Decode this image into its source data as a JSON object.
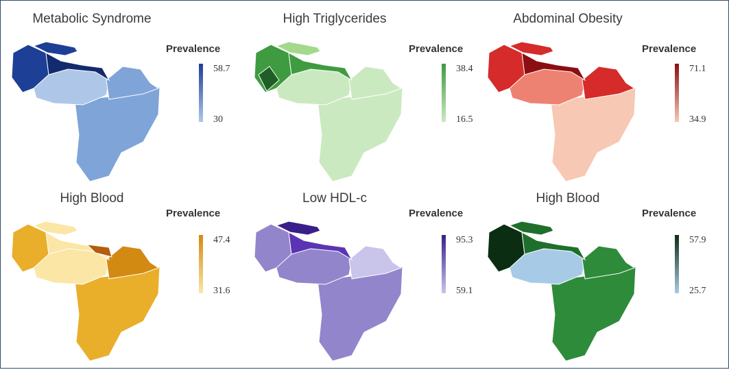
{
  "figure": {
    "panels": [
      {
        "id": "metabolic",
        "title": "Metabolic Syndrome",
        "legend_title": "Prevalence",
        "max": "58.7",
        "min": "30",
        "colors": {
          "light": "#aec7e8",
          "mid": "#7fa4d8",
          "dark": "#1d3f96",
          "darker": "#122a6e"
        }
      },
      {
        "id": "triglycerides",
        "title": "High Triglycerides",
        "legend_title": "Prevalence",
        "max": "38.4",
        "min": "16.5",
        "colors": {
          "light": "#cbe9c0",
          "mid": "#a3d98b",
          "dark": "#3f9b3f",
          "darker": "#1f5f27"
        }
      },
      {
        "id": "obesity",
        "title": "Abdominal Obesity",
        "legend_title": "Prevalence",
        "max": "71.1",
        "min": "34.9",
        "colors": {
          "light": "#f7c8b3",
          "mid": "#ee8272",
          "dark": "#d62b2b",
          "darker": "#8b0f12"
        }
      },
      {
        "id": "high_blood_1",
        "title": "High Blood",
        "legend_title": "Prevalence",
        "max": "47.4",
        "min": "31.6",
        "colors": {
          "light": "#fbe6a6",
          "mid": "#e9ae2a",
          "dark": "#d38a12",
          "darker": "#b35e0c"
        }
      },
      {
        "id": "low_hdl",
        "title": "Low HDL-c",
        "legend_title": "Prevalence",
        "max": "95.3",
        "min": "59.1",
        "colors": {
          "light": "#c9c4ea",
          "mid": "#9385cc",
          "dark": "#5a34b3",
          "darker": "#3a1f8a"
        }
      },
      {
        "id": "high_blood_2",
        "title": "High Blood",
        "legend_title": "Prevalence",
        "max": "57.9",
        "min": "25.7",
        "colors": {
          "light": "#a7cbe6",
          "mid": "#2e8b3a",
          "dark": "#1f6f2c",
          "darker": "#0b2e13"
        }
      }
    ]
  }
}
